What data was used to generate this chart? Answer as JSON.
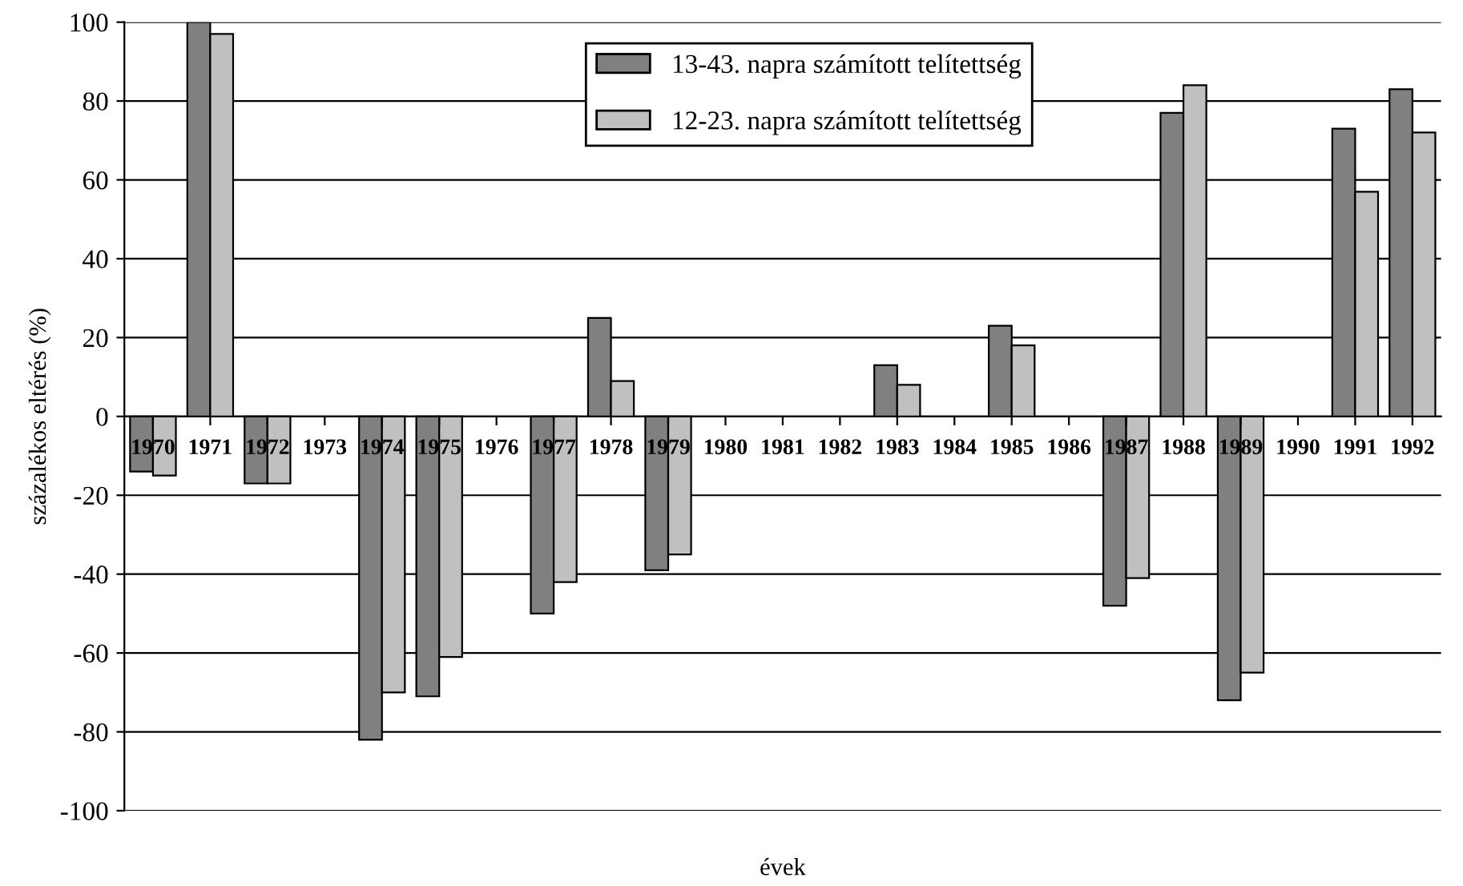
{
  "chart_data": {
    "type": "bar",
    "xlabel": "évek",
    "ylabel": "százalékos eltérés (%)",
    "categories": [
      "1970",
      "1971",
      "1972",
      "1973",
      "1974",
      "1975",
      "1976",
      "1977",
      "1978",
      "1979",
      "1980",
      "1981",
      "1982",
      "1983",
      "1984",
      "1985",
      "1986",
      "1987",
      "1988",
      "1989",
      "1990",
      "1991",
      "1992"
    ],
    "series": [
      {
        "name": "13-43. napra számított telítettség",
        "color": "#808080",
        "values": [
          -14,
          100,
          -17,
          null,
          -82,
          -71,
          null,
          -50,
          25,
          -39,
          null,
          null,
          null,
          13,
          null,
          23,
          null,
          -48,
          77,
          -72,
          null,
          73,
          83
        ]
      },
      {
        "name": "12-23. napra számított telítettség",
        "color": "#c0c0c0",
        "values": [
          -15,
          97,
          -17,
          null,
          -70,
          -61,
          null,
          -42,
          9,
          -35,
          null,
          null,
          null,
          8,
          null,
          18,
          null,
          -41,
          84,
          -65,
          null,
          57,
          72
        ]
      }
    ],
    "ylim": [
      -100,
      100
    ],
    "yticks": [
      -100,
      -80,
      -60,
      -40,
      -20,
      0,
      20,
      40,
      60,
      80,
      100
    ],
    "grid": "y",
    "legend": "top"
  }
}
